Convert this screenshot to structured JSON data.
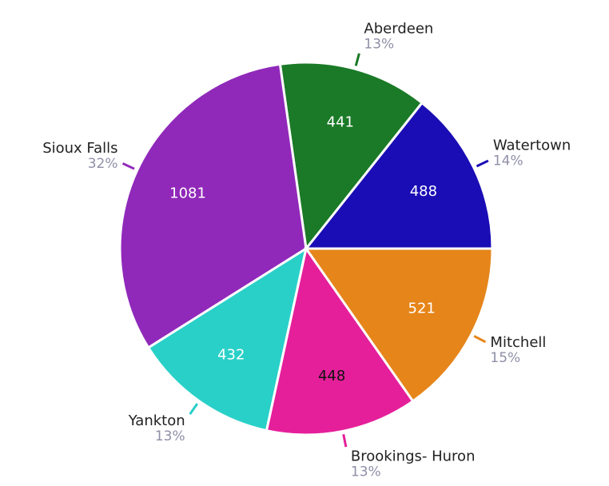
{
  "chart_data": {
    "type": "pie",
    "categories": [
      "Watertown",
      "Aberdeen",
      "Sioux Falls",
      "Yankton",
      "Brookings- Huron",
      "Mitchell"
    ],
    "values": [
      488,
      441,
      1081,
      432,
      448,
      521
    ],
    "percent_labels": [
      "14%",
      "13%",
      "32%",
      "13%",
      "13%",
      "15%"
    ],
    "colors": [
      "#1a0db5",
      "#1b7a27",
      "#9029b9",
      "#29d0c8",
      "#e51f9a",
      "#e6851a"
    ],
    "label_colors": [
      "#ffffff",
      "#ffffff",
      "#ffffff",
      "#ffffff",
      "#111111",
      "#ffffff"
    ]
  }
}
